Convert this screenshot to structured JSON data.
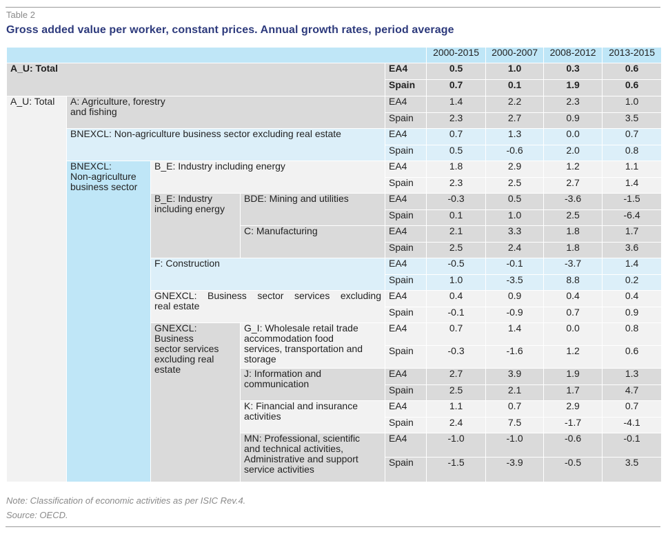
{
  "header": {
    "label": "Table 2",
    "title": "Gross added value per worker, constant prices. Annual growth rates, period average"
  },
  "columns": [
    "2000-2015",
    "2000-2007",
    "2008-2012",
    "2013-2015"
  ],
  "labels": {
    "au_total_bold": "A_U: Total",
    "au_total": "A_U: Total",
    "agri_1": "A: Agriculture, forestry",
    "agri_2": "and fishing",
    "bnexcl_full": "BNEXCL: Non-agriculture business sector excluding real estate",
    "bnexcl_1": "BNEXCL:",
    "bnexcl_2": "Non-agriculture",
    "bnexcl_3": "business sector",
    "be_full": "B_E: Industry including energy",
    "be_1": "B_E: Industry",
    "be_2": "including energy",
    "bde": "BDE: Mining and utilities",
    "c": "C: Manufacturing",
    "f": "F: Construction",
    "gnexcl_full_1": "GNEXCL: Business sector services excluding",
    "gnexcl_full_2": "real estate",
    "gnexcl_1": "GNEXCL:",
    "gnexcl_2": "Business",
    "gnexcl_3": "sector services",
    "gnexcl_4": "excluding real",
    "gnexcl_5": "estate",
    "gi_1": "G_I: Wholesale retail trade",
    "gi_2": "accommodation food",
    "gi_3": "services, transportation and",
    "gi_4": "storage",
    "j_1": "J: Information and",
    "j_2": "communication",
    "k_1": "K: Financial and insurance",
    "k_2": "activities",
    "mn_1": "MN: Professional, scientific",
    "mn_2": "and technical activities,",
    "mn_3": "Administrative and support",
    "mn_4": "service activities"
  },
  "rows": [
    {
      "code": "EA4",
      "values": [
        "0.5",
        "1.0",
        "0.3",
        "0.6"
      ]
    },
    {
      "code": "Spain",
      "values": [
        "0.7",
        "0.1",
        "1.9",
        "0.6"
      ]
    },
    {
      "code": "EA4",
      "values": [
        "1.4",
        "2.2",
        "2.3",
        "1.0"
      ]
    },
    {
      "code": "Spain",
      "values": [
        "2.3",
        "2.7",
        "0.9",
        "3.5"
      ]
    },
    {
      "code": "EA4",
      "values": [
        "0.7",
        "1.3",
        "0.0",
        "0.7"
      ]
    },
    {
      "code": "Spain",
      "values": [
        "0.5",
        "-0.6",
        "2.0",
        "0.8"
      ]
    },
    {
      "code": "EA4",
      "values": [
        "1.8",
        "2.9",
        "1.2",
        "1.1"
      ]
    },
    {
      "code": "Spain",
      "values": [
        "2.3",
        "2.5",
        "2.7",
        "1.4"
      ]
    },
    {
      "code": "EA4",
      "values": [
        "-0.3",
        "0.5",
        "-3.6",
        "-1.5"
      ]
    },
    {
      "code": "Spain",
      "values": [
        "0.1",
        "1.0",
        "2.5",
        "-6.4"
      ]
    },
    {
      "code": "EA4",
      "values": [
        "2.1",
        "3.3",
        "1.8",
        "1.7"
      ]
    },
    {
      "code": "Spain",
      "values": [
        "2.5",
        "2.4",
        "1.8",
        "3.6"
      ]
    },
    {
      "code": "EA4",
      "values": [
        "-0.5",
        "-0.1",
        "-3.7",
        "1.4"
      ]
    },
    {
      "code": "Spain",
      "values": [
        "1.0",
        "-3.5",
        "8.8",
        "0.2"
      ]
    },
    {
      "code": "EA4",
      "values": [
        "0.4",
        "0.9",
        "0.4",
        "0.4"
      ]
    },
    {
      "code": "Spain",
      "values": [
        "-0.1",
        "-0.9",
        "0.7",
        "0.9"
      ]
    },
    {
      "code": "EA4",
      "values": [
        "0.7",
        "1.4",
        "0.0",
        "0.8"
      ]
    },
    {
      "code": "Spain",
      "values": [
        "-0.3",
        "-1.6",
        "1.2",
        "0.6"
      ]
    },
    {
      "code": "EA4",
      "values": [
        "2.7",
        "3.9",
        "1.9",
        "1.3"
      ]
    },
    {
      "code": "Spain",
      "values": [
        "2.5",
        "2.1",
        "1.7",
        "4.7"
      ]
    },
    {
      "code": "EA4",
      "values": [
        "1.1",
        "0.7",
        "2.9",
        "0.7"
      ]
    },
    {
      "code": "Spain",
      "values": [
        "2.4",
        "7.5",
        "-1.7",
        "-4.1"
      ]
    },
    {
      "code": "EA4",
      "values": [
        "-1.0",
        "-1.0",
        "-0.6",
        "-0.1"
      ]
    },
    {
      "code": "Spain",
      "values": [
        "-1.5",
        "-3.9",
        "-0.5",
        "3.5"
      ]
    }
  ],
  "footer": {
    "note": "Note: Classification of economic activities as per ISIC Rev.4.",
    "source": "Source: OECD."
  }
}
